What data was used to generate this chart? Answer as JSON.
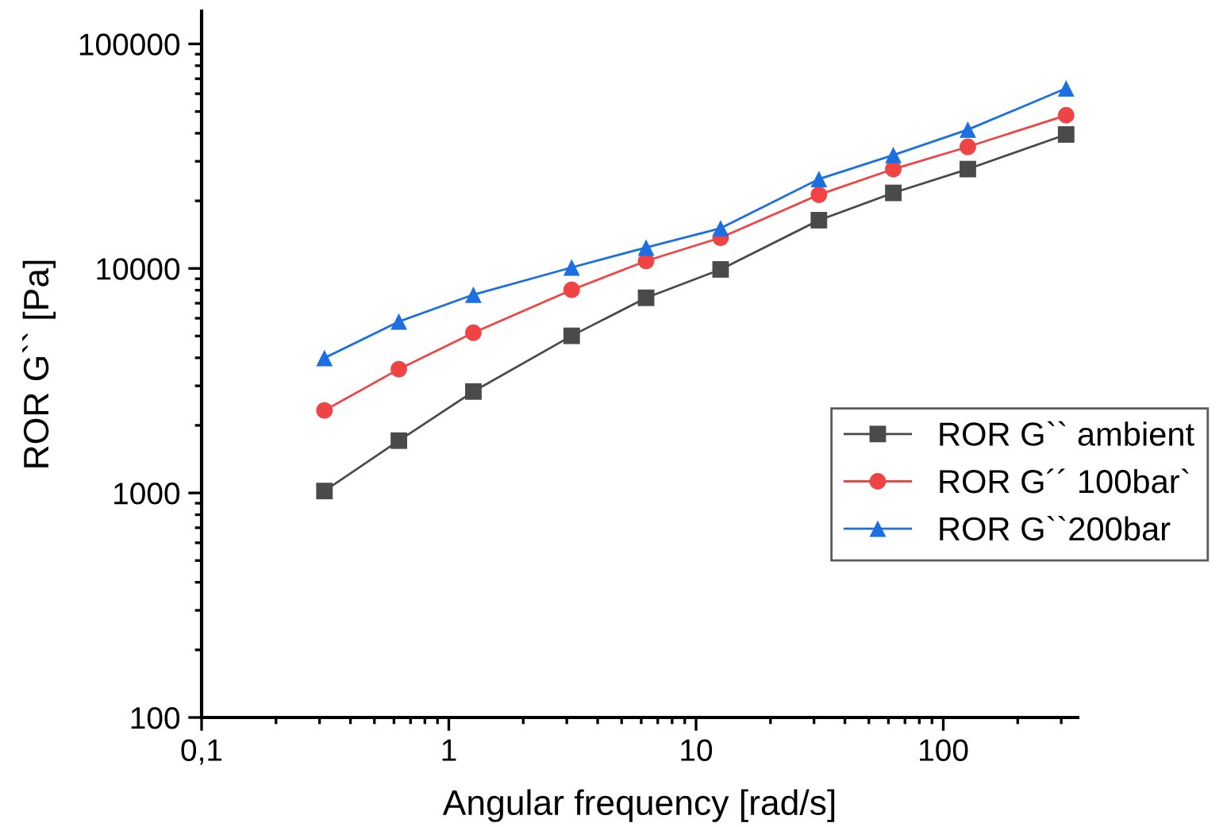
{
  "chart_data": {
    "type": "line",
    "xlabel": "Angular frequency [rad/s]",
    "ylabel": "ROR G`` [Pa]",
    "log": "xy",
    "x": [
      0.314,
      0.628,
      1.257,
      3.14,
      6.28,
      12.57,
      31.4,
      62.8,
      125.7,
      314
    ],
    "xlim": [
      0.1,
      350
    ],
    "xticks": [
      {
        "value": 0.1,
        "label": "0,1"
      },
      1,
      10,
      100
    ],
    "ylim": [
      100,
      140000
    ],
    "yticks": [
      100,
      1000,
      10000,
      100000
    ],
    "grid": false,
    "legend": "right",
    "series": [
      {
        "name": "ROR G`` ambient",
        "color": "#4a4a4a",
        "marker": "square",
        "values": [
          1020,
          1710,
          2830,
          5010,
          7400,
          9900,
          16400,
          21700,
          27700,
          39500
        ]
      },
      {
        "name": "ROR G´´ 100bar`",
        "color": "#f04444",
        "marker": "circle",
        "values": [
          2330,
          3560,
          5170,
          8030,
          10800,
          13700,
          21300,
          27700,
          34800,
          48100
        ]
      },
      {
        "name": "ROR G``200bar",
        "color": "#1c6fe0",
        "marker": "triangle",
        "values": [
          3990,
          5800,
          7640,
          10100,
          12400,
          15100,
          25000,
          32000,
          41500,
          63400
        ]
      }
    ]
  }
}
